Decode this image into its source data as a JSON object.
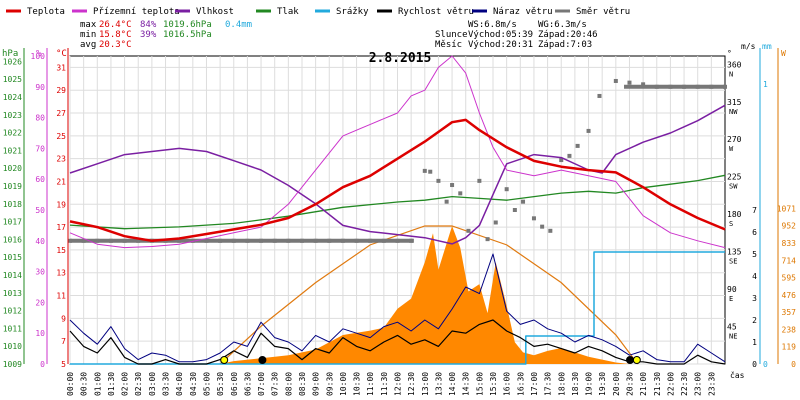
{
  "chart_data": {
    "type": "line",
    "title": "2.8.2015",
    "legend": [
      {
        "name": "Teplota",
        "color": "#dd0000"
      },
      {
        "name": "Přízemní teplota",
        "color": "#cc33cc"
      },
      {
        "name": "Vlhkost",
        "color": "#7a1fa2"
      },
      {
        "name": "Tlak",
        "color": "#228822"
      },
      {
        "name": "Srážky",
        "color": "#22aadd"
      },
      {
        "name": "Rychlost větru",
        "color": "#000000"
      },
      {
        "name": "Náraz větru",
        "color": "#000080"
      },
      {
        "name": "Směr větru",
        "color": "#777777"
      }
    ],
    "stats": {
      "max": {
        "label": "max",
        "temp": "26.4°C",
        "hum": "84%",
        "press": "1019.6hPa",
        "rain": "0.4mm"
      },
      "min": {
        "label": "min",
        "temp": "15.8°C",
        "hum": "39%",
        "press": "1016.5hPa"
      },
      "avg": {
        "label": "avg",
        "temp": "20.3°C"
      }
    },
    "wind_info": {
      "ws": "WS:6.8m/s",
      "wg": "WG:6.3m/s"
    },
    "sun": {
      "label": "Slunce",
      "rise": "Východ:05:39",
      "set": "Západ:20:46"
    },
    "moon": {
      "label": "Měsíc",
      "rise": "Východ:20:31",
      "set": "Západ:7:03"
    },
    "axes": {
      "hpa": {
        "label": "hPa",
        "ticks": [
          "1026",
          "1025",
          "1024",
          "1023",
          "1022",
          "1021",
          "1020",
          "1019",
          "1018",
          "1017",
          "1016",
          "1015",
          "1014",
          "1013",
          "1012",
          "1011",
          "1010",
          "1009"
        ],
        "range": [
          1009,
          1026
        ]
      },
      "pct": {
        "label": "%",
        "ticks": [
          "100",
          "90",
          "80",
          "70",
          "60",
          "50",
          "40",
          "30",
          "20",
          "10",
          "0"
        ],
        "range": [
          0,
          100
        ]
      },
      "temp": {
        "label": "°C",
        "ticks": [
          "31",
          "29",
          "27",
          "25",
          "23",
          "21",
          "19",
          "17",
          "15",
          "13",
          "11",
          "9",
          "7",
          "5"
        ],
        "range": [
          5,
          32
        ]
      },
      "dir": {
        "label": "°",
        "ticks": [
          "360",
          "315",
          "270",
          "225",
          "180",
          "135",
          "90",
          "45"
        ],
        "ticks_sub": [
          "N",
          "NW",
          "W",
          "SW",
          "S",
          "SE",
          "E",
          "NE"
        ]
      },
      "ms": {
        "label": "m/s",
        "ticks": [
          "7",
          "6",
          "5",
          "4",
          "3",
          "2",
          "1",
          "0"
        ]
      },
      "mm": {
        "label": "mm",
        "ticks": [
          "1",
          "0"
        ]
      },
      "watt": {
        "label": "W",
        "ticks": [
          "1071",
          "952",
          "833",
          "714",
          "595",
          "476",
          "357",
          "238",
          "119",
          "0"
        ]
      },
      "x_label": "čas",
      "x_ticks": [
        "00:00",
        "00:30",
        "01:00",
        "01:30",
        "02:00",
        "02:30",
        "03:00",
        "03:30",
        "04:00",
        "04:30",
        "05:00",
        "05:30",
        "06:00",
        "06:30",
        "07:00",
        "07:30",
        "08:00",
        "08:30",
        "09:00",
        "09:30",
        "10:00",
        "10:30",
        "11:00",
        "11:30",
        "12:00",
        "12:30",
        "13:00",
        "13:30",
        "14:00",
        "14:30",
        "15:00",
        "15:30",
        "16:00",
        "16:30",
        "17:00",
        "17:30",
        "18:00",
        "18:30",
        "19:00",
        "19:30",
        "20:00",
        "20:30",
        "21:00",
        "21:30",
        "22:00",
        "22:30",
        "23:00",
        "23:30"
      ]
    },
    "series": {
      "temperature": {
        "x": [
          0,
          1,
          2,
          3,
          4,
          5,
          6,
          7,
          8,
          9,
          10,
          11,
          12,
          13,
          14,
          14.5,
          15,
          16,
          17,
          18,
          19,
          20,
          21,
          22,
          23,
          24
        ],
        "y": [
          17.5,
          17,
          16.2,
          15.8,
          16,
          16.4,
          16.8,
          17.2,
          17.8,
          19,
          20.5,
          21.5,
          23,
          24.5,
          26.2,
          26.4,
          25.5,
          24,
          22.8,
          22.3,
          22,
          21.8,
          20.5,
          19,
          17.8,
          16.8
        ]
      },
      "ground_temperature": {
        "x": [
          0,
          1,
          2,
          3,
          4,
          5,
          6,
          7,
          8,
          9,
          10,
          11,
          12,
          12.5,
          13,
          13.5,
          14,
          14.5,
          15,
          15.5,
          16,
          17,
          18,
          19,
          20,
          21,
          22,
          23,
          24
        ],
        "y": [
          16.5,
          15.5,
          15.2,
          15.3,
          15.5,
          16,
          16.5,
          17,
          19,
          22,
          25,
          26,
          27,
          28.5,
          29,
          31,
          32,
          30.5,
          27,
          24,
          22,
          21.5,
          22,
          21.5,
          21,
          18,
          16.5,
          15.8,
          15.2
        ]
      },
      "humidity": {
        "x": [
          0,
          1,
          2,
          3,
          4,
          5,
          6,
          7,
          8,
          9,
          10,
          11,
          12,
          13,
          14,
          14.5,
          15,
          15.5,
          16,
          17,
          18,
          19,
          19.5,
          20,
          21,
          22,
          23,
          24
        ],
        "y": [
          62,
          65,
          68,
          69,
          70,
          69,
          66,
          63,
          58,
          52,
          45,
          43,
          42,
          41,
          39,
          41,
          45,
          55,
          65,
          68,
          67,
          63,
          62,
          68,
          72,
          75,
          79,
          84
        ]
      },
      "pressure": {
        "x": [
          0,
          2,
          4,
          6,
          8,
          10,
          12,
          13,
          14,
          15,
          16,
          17,
          18,
          19,
          20,
          21,
          22,
          23,
          24
        ],
        "y": [
          1016.8,
          1016.6,
          1016.7,
          1016.9,
          1017.3,
          1017.8,
          1018.1,
          1018.2,
          1018.4,
          1018.3,
          1018.2,
          1018.4,
          1018.6,
          1018.7,
          1018.6,
          1018.9,
          1019.1,
          1019.3,
          1019.6
        ]
      },
      "rain_mm": {
        "x": [
          0,
          16.7,
          16.7,
          19.2,
          19.2,
          24
        ],
        "y": [
          0,
          0,
          0.1,
          0.1,
          0.4,
          0.4
        ]
      },
      "solar_w": {
        "x": [
          0,
          5.5,
          6,
          7,
          8,
          9,
          10,
          11,
          11.5,
          12,
          12.5,
          13,
          13.3,
          13.5,
          14,
          14.3,
          14.6,
          15,
          15.3,
          15.6,
          16,
          16.3,
          16.6,
          17,
          17.5,
          18,
          18.5,
          19,
          19.5,
          20,
          20.5,
          24
        ],
        "y": [
          0,
          0,
          20,
          40,
          60,
          100,
          200,
          230,
          250,
          380,
          450,
          700,
          900,
          650,
          950,
          800,
          500,
          550,
          350,
          700,
          400,
          150,
          80,
          60,
          90,
          110,
          80,
          50,
          30,
          10,
          0,
          0
        ]
      },
      "solar_theoretical_w": {
        "x": [
          5.5,
          7,
          9,
          11,
          13,
          14,
          16,
          18,
          20,
          20.8
        ],
        "y": [
          0,
          260,
          560,
          820,
          950,
          950,
          820,
          560,
          200,
          0
        ]
      },
      "wind_speed": {
        "x": [
          0,
          0.5,
          1,
          1.5,
          2,
          2.5,
          3,
          3.5,
          4,
          4.5,
          5,
          5.5,
          6,
          6.5,
          7,
          7.5,
          8,
          8.5,
          9,
          9.5,
          10,
          10.5,
          11,
          11.5,
          12,
          12.5,
          13,
          13.5,
          14,
          14.5,
          15,
          15.5,
          16,
          16.5,
          17,
          17.5,
          18,
          18.5,
          19,
          19.5,
          20,
          20.5,
          21,
          21.5,
          22,
          22.5,
          23,
          23.5,
          24
        ],
        "y": [
          1.5,
          0.8,
          0.5,
          1.2,
          0.3,
          0,
          0,
          0.2,
          0,
          0,
          0,
          0.2,
          0.6,
          0.3,
          1.4,
          0.8,
          0.7,
          0.2,
          0.7,
          0.5,
          1.2,
          0.8,
          0.6,
          1.0,
          1.3,
          0.9,
          1.1,
          0.8,
          1.5,
          1.4,
          1.8,
          2.0,
          1.5,
          1.2,
          0.8,
          0.9,
          0.7,
          0.5,
          0.8,
          0.6,
          0.3,
          0.1,
          0.1,
          0,
          0,
          0,
          0.4,
          0.1,
          0
        ]
      },
      "wind_gust": {
        "x": [
          0,
          0.5,
          1,
          1.5,
          2,
          2.5,
          3,
          3.5,
          4,
          4.5,
          5,
          5.5,
          6,
          6.5,
          7,
          7.5,
          8,
          8.5,
          9,
          9.5,
          10,
          10.5,
          11,
          11.5,
          12,
          12.5,
          13,
          13.5,
          14,
          14.5,
          15,
          15.5,
          16,
          16.5,
          17,
          17.5,
          18,
          18.5,
          19,
          19.5,
          20,
          20.5,
          21,
          21.5,
          22,
          22.5,
          23,
          23.5,
          24
        ],
        "y": [
          2.0,
          1.4,
          0.9,
          1.7,
          0.7,
          0.2,
          0.5,
          0.4,
          0.1,
          0.1,
          0.2,
          0.5,
          1.0,
          0.8,
          1.9,
          1.2,
          1.0,
          0.6,
          1.3,
          1.0,
          1.6,
          1.4,
          1.2,
          1.7,
          1.9,
          1.5,
          2.0,
          1.6,
          2.5,
          3.5,
          3.2,
          5.0,
          2.4,
          1.8,
          2.0,
          1.6,
          1.4,
          1.0,
          1.3,
          1.1,
          0.8,
          0.4,
          0.6,
          0.2,
          0.1,
          0.1,
          0.9,
          0.5,
          0.1
        ]
      },
      "wind_direction": {
        "x": [
          0,
          0.5,
          1,
          1.5,
          2,
          2.5,
          3,
          3.5,
          4,
          4.5,
          5,
          5.5,
          6,
          6.5,
          7,
          7.5,
          8,
          8.5,
          9,
          9.5,
          10,
          10.5,
          11,
          11.5,
          12,
          12.5,
          13.0,
          13.2,
          13.5,
          13.8,
          14.0,
          14.3,
          14.6,
          15.0,
          15.3,
          15.6,
          16.0,
          16.3,
          16.6,
          17.0,
          17.3,
          17.6,
          18.0,
          18.3,
          18.6,
          19.0,
          19.4,
          20,
          20.5,
          21,
          21.5,
          22,
          22.5,
          23,
          23.5,
          24
        ],
        "y": [
          148,
          148,
          148,
          148,
          148,
          148,
          148,
          148,
          148,
          148,
          148,
          148,
          148,
          148,
          148,
          148,
          148,
          148,
          148,
          148,
          148,
          148,
          148,
          148,
          148,
          148,
          232,
          231,
          220,
          195,
          215,
          205,
          160,
          220,
          150,
          170,
          210,
          185,
          195,
          175,
          165,
          160,
          245,
          250,
          262,
          280,
          322,
          340,
          338,
          336,
          333,
          333,
          333,
          333,
          333,
          333
        ]
      }
    }
  }
}
